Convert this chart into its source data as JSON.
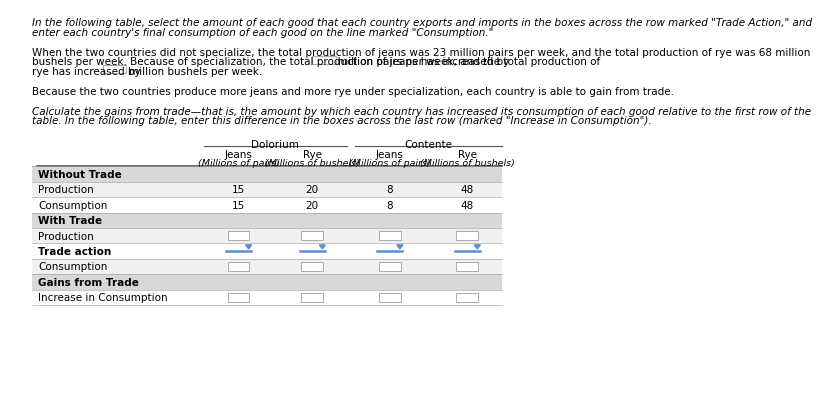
{
  "bg_color": "#ffffff",
  "para1_line1": "In the following table, select the amount of each good that each country exports and imports in the boxes across the row marked \"Trade Action,\" and",
  "para1_line2": "enter each country's final consumption of each good on the line marked \"Consumption.\"",
  "para2_line1": "When the two countries did not specialize, the total production of jeans was 23 million pairs per week, and the total production of rye was 68 million",
  "para2_line2a": "bushels per week. Because of specialization, the total production of jeans has increased by",
  "para2_line2b": "million pairs per week, and the total production of",
  "para2_line3a": "rye has increased by",
  "para2_line3b": "million bushels per week.",
  "para3": "Because the two countries produce more jeans and more rye under specialization, each country is able to gain from trade.",
  "para4_line1": "Calculate the gains from trade—that is, the amount by which each country has increased its consumption of each good relative to the first row of the",
  "para4_line2": "table. In the following table, enter this difference in the boxes across the last row (marked \"Increase in Consumption\").",
  "col_dolorium": "Dolorium",
  "col_contente": "Contente",
  "col_jeans": "Jeans",
  "col_rye": "Rye",
  "col_jeans_unit": "(Millions of pairs)",
  "col_rye_unit": "(Millions of bushels)",
  "prod_dol_jeans": "15",
  "prod_dol_rye": "20",
  "prod_cont_jeans": "8",
  "prod_cont_rye": "48",
  "cons_dol_jeans": "15",
  "cons_dol_rye": "20",
  "cons_cont_jeans": "8",
  "cons_cont_rye": "48",
  "box_border": "#aaaaaa",
  "blue_line_color": "#5b8fd4",
  "dropdown_arrow_color": "#5b8fd4",
  "shaded_row_color": "#e0e0e0",
  "alt_row_color": "#efefef",
  "header_line_color": "#555555",
  "divider_color": "#999999",
  "font_size_para": 7.5,
  "font_size_table": 7.5,
  "font_size_unit": 6.8
}
